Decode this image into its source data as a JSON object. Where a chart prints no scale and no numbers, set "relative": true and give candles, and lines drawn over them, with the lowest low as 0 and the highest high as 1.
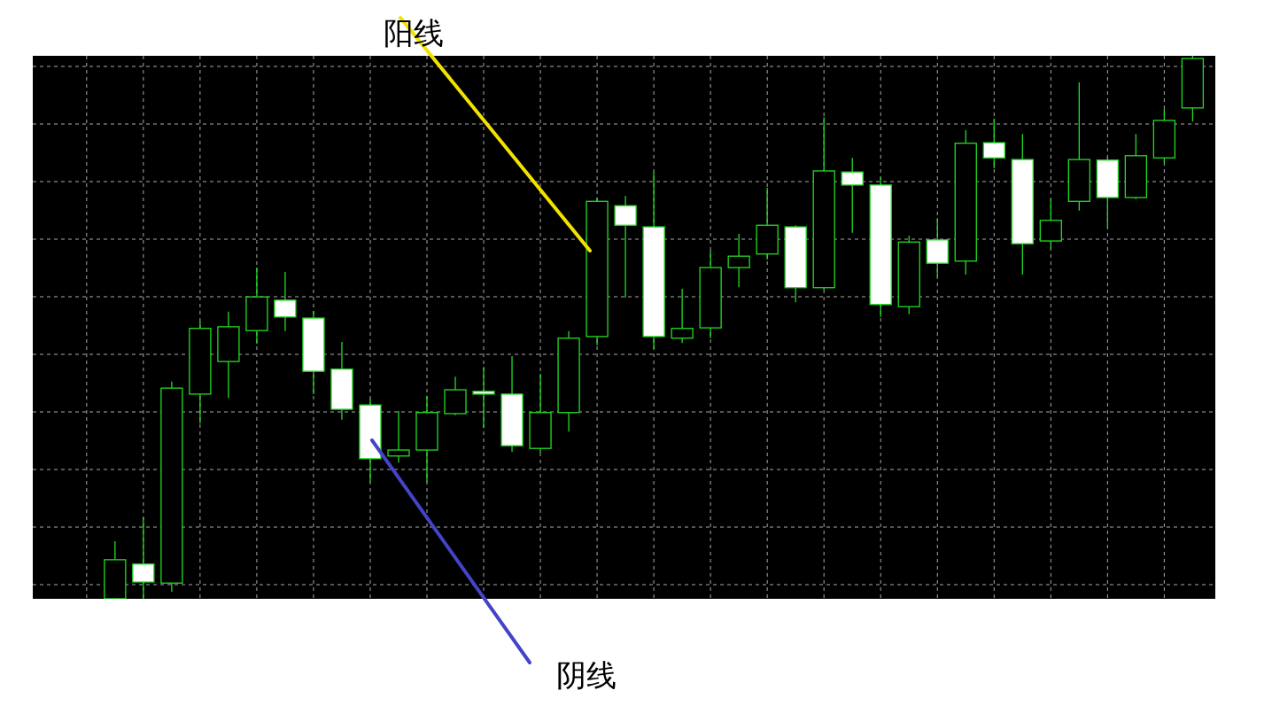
{
  "chart_data": {
    "type": "candlestick",
    "relative": true,
    "grid": true,
    "color": "#22dd22",
    "categories": [
      null,
      null,
      null,
      null,
      null,
      null,
      null,
      null,
      null,
      null,
      null,
      null,
      null,
      null,
      null,
      null,
      null,
      null,
      null,
      null,
      null,
      null,
      null,
      null,
      null,
      null,
      null,
      null,
      null,
      null,
      null,
      null,
      null,
      null,
      null,
      null,
      null,
      null,
      null
    ],
    "ohlc": [
      [
        0,
        0.106,
        0,
        0.072
      ],
      [
        0.064,
        0.15,
        0,
        0.031
      ],
      [
        0.029,
        0.4,
        0.013,
        0.388
      ],
      [
        0.377,
        0.512,
        0.323,
        0.498
      ],
      [
        0.437,
        0.529,
        0.37,
        0.501
      ],
      [
        0.494,
        0.61,
        0.47,
        0.556
      ],
      [
        0.55,
        0.602,
        0.493,
        0.519
      ],
      [
        0.517,
        0.53,
        0.377,
        0.419
      ],
      [
        0.423,
        0.473,
        0.33,
        0.349
      ],
      [
        0.357,
        0.369,
        0.215,
        0.258
      ],
      [
        0.263,
        0.346,
        0.251,
        0.274
      ],
      [
        0.274,
        0.374,
        0.215,
        0.343
      ],
      [
        0.341,
        0.409,
        0.338,
        0.385
      ],
      [
        0.382,
        0.427,
        0.315,
        0.377
      ],
      [
        0.377,
        0.447,
        0.271,
        0.282
      ],
      [
        0.277,
        0.414,
        0.269,
        0.343
      ],
      [
        0.343,
        0.493,
        0.308,
        0.48
      ],
      [
        0.483,
        0.739,
        0.467,
        0.732
      ],
      [
        0.724,
        0.742,
        0.555,
        0.688
      ],
      [
        0.685,
        0.786,
        0.46,
        0.483
      ],
      [
        0.48,
        0.571,
        0.471,
        0.498
      ],
      [
        0.499,
        0.641,
        0.48,
        0.61
      ],
      [
        0.61,
        0.672,
        0.574,
        0.631
      ],
      [
        0.635,
        0.757,
        0.625,
        0.688
      ],
      [
        0.685,
        0.688,
        0.546,
        0.573
      ],
      [
        0.573,
        0.887,
        0.569,
        0.788
      ],
      [
        0.786,
        0.812,
        0.674,
        0.762
      ],
      [
        0.762,
        0.777,
        0.519,
        0.542
      ],
      [
        0.538,
        0.669,
        0.524,
        0.657
      ],
      [
        0.661,
        0.701,
        0.592,
        0.618
      ],
      [
        0.622,
        0.863,
        0.597,
        0.839
      ],
      [
        0.84,
        0.884,
        0.793,
        0.812
      ],
      [
        0.809,
        0.856,
        0.597,
        0.654
      ],
      [
        0.659,
        0.737,
        0.644,
        0.697
      ],
      [
        0.732,
        0.951,
        0.715,
        0.809
      ],
      [
        0.808,
        0.814,
        0.684,
        0.739
      ],
      [
        0.739,
        0.856,
        0.736,
        0.816
      ],
      [
        0.812,
        0.902,
        0.803,
        0.881
      ],
      [
        0.904,
        1,
        0.879,
        0.995
      ]
    ],
    "annotations": [
      "阳线",
      "阴线"
    ]
  }
}
